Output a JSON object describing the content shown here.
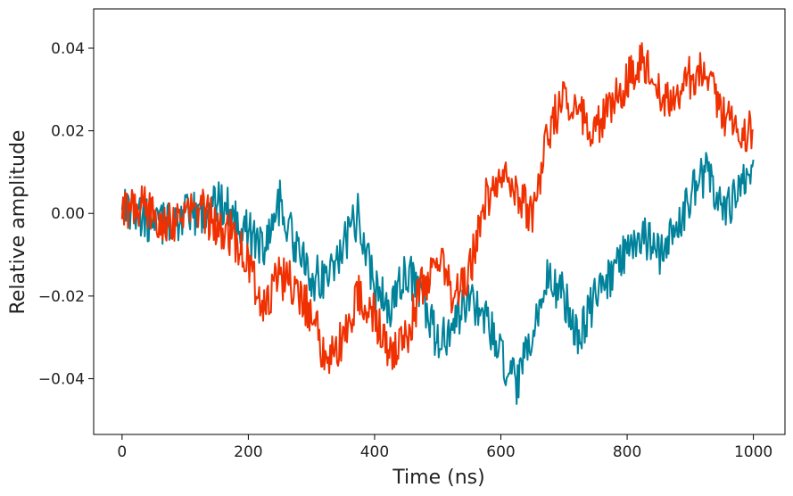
{
  "chart_data": {
    "type": "line",
    "xlabel": "Time (ns)",
    "ylabel": "Relative amplitude",
    "xlim": [
      -45,
      1050
    ],
    "ylim": [
      -0.0535,
      0.0495
    ],
    "x_ticks": [
      0,
      200,
      400,
      600,
      800,
      1000
    ],
    "x_tick_labels": [
      "0",
      "200",
      "400",
      "600",
      "800",
      "1000"
    ],
    "y_ticks": [
      -0.04,
      -0.02,
      0.0,
      0.02,
      0.04
    ],
    "y_tick_labels": [
      "−0.04",
      "−0.02",
      "0.00",
      "0.02",
      "0.04"
    ],
    "grid": false,
    "series": [
      {
        "color": "#00829a",
        "x": [
          0,
          25,
          50,
          75,
          100,
          125,
          150,
          175,
          200,
          225,
          250,
          275,
          300,
          325,
          350,
          375,
          400,
          425,
          450,
          475,
          500,
          525,
          550,
          575,
          600,
          625,
          650,
          675,
          700,
          725,
          750,
          775,
          800,
          825,
          850,
          875,
          900,
          925,
          950,
          975,
          1000
        ],
        "y": [
          0.003,
          0.0,
          -0.003,
          -0.002,
          -0.001,
          0.0,
          0.003,
          0.001,
          -0.005,
          -0.008,
          0.003,
          -0.008,
          -0.016,
          -0.015,
          -0.008,
          0.0,
          -0.018,
          -0.023,
          -0.014,
          -0.02,
          -0.032,
          -0.028,
          -0.02,
          -0.025,
          -0.035,
          -0.042,
          -0.03,
          -0.015,
          -0.02,
          -0.03,
          -0.02,
          -0.015,
          -0.008,
          -0.005,
          -0.01,
          -0.005,
          0.005,
          0.01,
          0.0,
          0.005,
          0.013
        ]
      },
      {
        "color": "#f03000",
        "x": [
          0,
          25,
          50,
          75,
          100,
          125,
          150,
          175,
          200,
          225,
          250,
          275,
          300,
          325,
          350,
          375,
          400,
          425,
          450,
          475,
          500,
          525,
          550,
          575,
          600,
          625,
          650,
          675,
          700,
          725,
          750,
          775,
          800,
          825,
          850,
          875,
          900,
          925,
          950,
          975,
          1000
        ],
        "y": [
          0.0,
          0.002,
          0.0,
          -0.002,
          0.0,
          0.001,
          -0.003,
          -0.005,
          -0.012,
          -0.023,
          -0.015,
          -0.018,
          -0.024,
          -0.037,
          -0.03,
          -0.02,
          -0.025,
          -0.035,
          -0.03,
          -0.018,
          -0.01,
          -0.02,
          -0.015,
          0.003,
          0.01,
          0.005,
          0.0,
          0.02,
          0.028,
          0.025,
          0.02,
          0.025,
          0.033,
          0.038,
          0.03,
          0.025,
          0.033,
          0.035,
          0.025,
          0.02,
          0.02
        ]
      }
    ]
  }
}
